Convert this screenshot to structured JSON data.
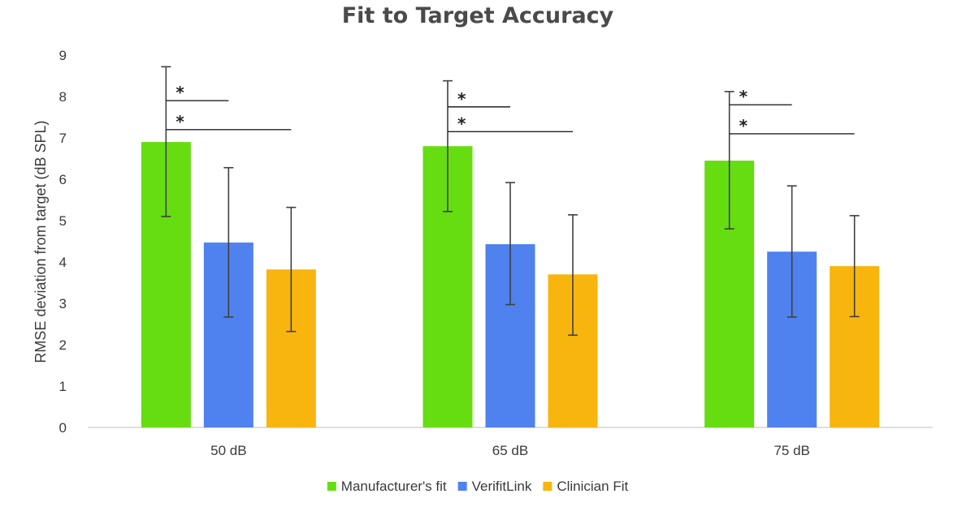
{
  "chart_data": {
    "type": "bar",
    "title": "Fit to Target  Accuracy",
    "xlabel": "",
    "ylabel": "RMSE deviation from target (dB SPL)",
    "categories": [
      "50 dB",
      "65 dB",
      "75 dB"
    ],
    "ylim": [
      0,
      9
    ],
    "yticks": [
      "0",
      "1",
      "2",
      "3",
      "4",
      "5",
      "6",
      "7",
      "8",
      "9"
    ],
    "grid": false,
    "legend_position": "bottom",
    "series": [
      {
        "name": "Manufacturer's fit",
        "color": "#66dd11",
        "values": [
          6.9,
          6.8,
          6.45
        ],
        "error_low": [
          5.1,
          5.22,
          4.8
        ],
        "error_high": [
          8.72,
          8.38,
          8.12
        ]
      },
      {
        "name": "VerifitLink",
        "color": "#4f82ee",
        "values": [
          4.47,
          4.43,
          4.25
        ],
        "error_low": [
          2.67,
          2.97,
          2.67
        ],
        "error_high": [
          6.28,
          5.92,
          5.84
        ]
      },
      {
        "name": "Clinician Fit",
        "color": "#f8b50e",
        "values": [
          3.82,
          3.7,
          3.9
        ],
        "error_low": [
          2.32,
          2.23,
          2.68
        ],
        "error_high": [
          5.32,
          5.14,
          5.12
        ]
      }
    ],
    "annotations": [
      {
        "category": 0,
        "from_series": 0,
        "to_series": 1,
        "level": 7.9,
        "text": "*"
      },
      {
        "category": 0,
        "from_series": 0,
        "to_series": 2,
        "level": 7.2,
        "text": "*"
      },
      {
        "category": 1,
        "from_series": 0,
        "to_series": 1,
        "level": 7.75,
        "text": "*"
      },
      {
        "category": 1,
        "from_series": 0,
        "to_series": 2,
        "level": 7.15,
        "text": "*"
      },
      {
        "category": 2,
        "from_series": 0,
        "to_series": 1,
        "level": 7.8,
        "text": "*"
      },
      {
        "category": 2,
        "from_series": 0,
        "to_series": 2,
        "level": 7.1,
        "text": "*"
      }
    ]
  }
}
